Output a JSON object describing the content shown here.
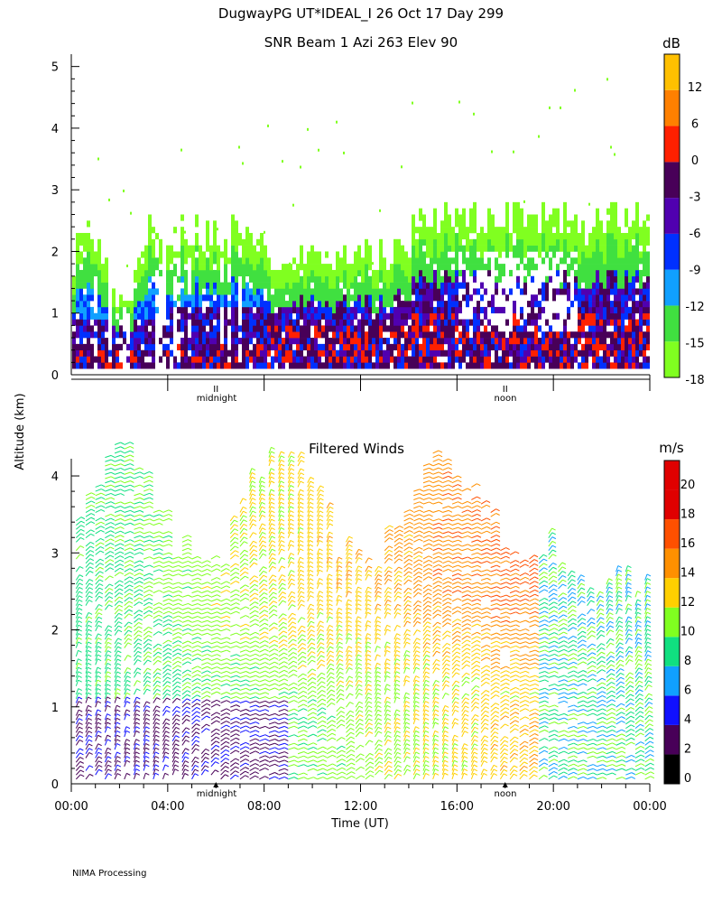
{
  "header": {
    "title": "DugwayPG UT*IDEAL_I  26 Oct 17 Day 299",
    "y_axis_label": "Altitude (km)",
    "footer_note": "NIMA Processing"
  },
  "chart_data": [
    {
      "type": "heatmap",
      "title": "SNR Beam 1 Azi 263 Elev 90",
      "ylabel": "Altitude (km)",
      "ylim": [
        0,
        5.2
      ],
      "y_ticks": [
        "0",
        "1",
        "2",
        "3",
        "4",
        "5"
      ],
      "time_markers": [
        {
          "label": "midnight",
          "hour": 6.0
        },
        {
          "label": "noon",
          "hour": 18.0
        }
      ],
      "colorbar": {
        "unit": "dB",
        "labels": [
          "12",
          "6",
          "0",
          "-3",
          "-6",
          "-9",
          "-12",
          "-15",
          "-18"
        ],
        "colors": [
          "#80ff20",
          "#40e040",
          "#10a0ff",
          "#0030ff",
          "#5000b0",
          "#480058",
          "#ff2000",
          "#ff8000",
          "#ffc000"
        ]
      },
      "grid": false
    },
    {
      "type": "scatter",
      "title": "Filtered Winds",
      "xlabel": "Time (UT)",
      "ylabel": "Altitude (km)",
      "ylim": [
        0,
        4.2
      ],
      "y_ticks": [
        "0",
        "1",
        "2",
        "3",
        "4"
      ],
      "x_ticks": [
        "00:00",
        "04:00",
        "08:00",
        "12:00",
        "16:00",
        "20:00",
        "00:00"
      ],
      "time_markers": [
        {
          "label": "midnight",
          "hour": 6.0
        },
        {
          "label": "noon",
          "hour": 18.0
        }
      ],
      "colorbar": {
        "unit": "m/s",
        "labels": [
          "20",
          "18",
          "16",
          "14",
          "12",
          "10",
          "8",
          "6",
          "4",
          "2",
          "0"
        ],
        "colors": [
          "#000000",
          "#480058",
          "#1010ff",
          "#10a0ff",
          "#10e080",
          "#80ff20",
          "#ffd000",
          "#ff9000",
          "#ff5000",
          "#e00000",
          "#e00000"
        ]
      },
      "grid": false
    }
  ]
}
